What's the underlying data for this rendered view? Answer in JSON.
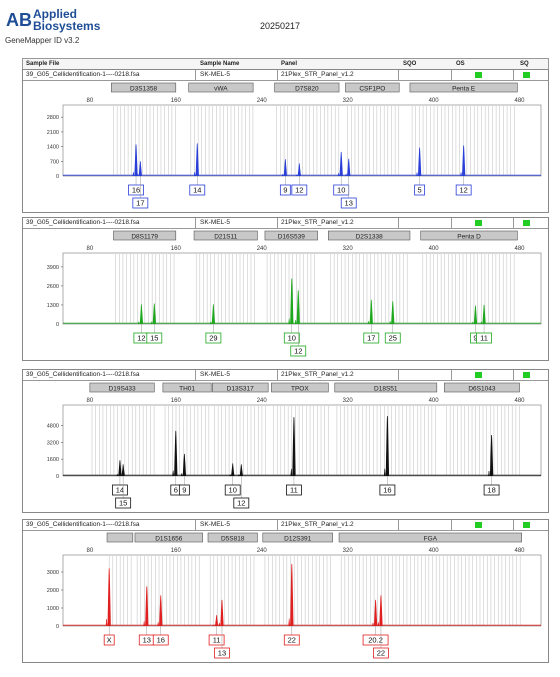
{
  "brand": {
    "line1": "Applied",
    "line2": "Biosystems",
    "logo_text": "AB"
  },
  "software": "GeneMapper ID v3.2",
  "report_date": "20250217",
  "header": {
    "sample_file": "Sample File",
    "sample_name": "Sample Name",
    "panel": "Panel",
    "sqo": "SQO",
    "os": "OS",
    "sq": "SQ"
  },
  "colors": {
    "blue": "#2a3fd8",
    "green": "#1fa81f",
    "black": "#111111",
    "red": "#e02020",
    "quality_ok": "#22cc22"
  },
  "chart_data": [
    {
      "type": "electropherogram",
      "dye": "blue",
      "sample_file": "39_G05_Cellidentification-1----0218.fsa",
      "sample_name": "SK-MEL-5",
      "panel": "21Plex_STR_Panel_v1.2",
      "x_ticks": [
        80,
        160,
        240,
        320,
        400,
        480
      ],
      "y_ticks": [
        700,
        1400,
        2100,
        2800
      ],
      "y_tick_labels": [
        "700",
        "1400",
        "2100",
        "2800"
      ],
      "ylim": [
        0,
        3000
      ],
      "markers": [
        {
          "name": "D3S1358",
          "start": 100,
          "end": 160
        },
        {
          "name": "vWA",
          "start": 172,
          "end": 232
        },
        {
          "name": "D7S820",
          "start": 252,
          "end": 312
        },
        {
          "name": "CSF1PO",
          "start": 318,
          "end": 368
        },
        {
          "name": "Penta E",
          "start": 378,
          "end": 478
        }
      ],
      "peaks": [
        {
          "x": 123,
          "h": 1500,
          "allele": "16",
          "row": 1
        },
        {
          "x": 127,
          "h": 700,
          "allele": "17",
          "row": 2
        },
        {
          "x": 180,
          "h": 1550,
          "allele": "14",
          "row": 1
        },
        {
          "x": 262,
          "h": 800,
          "allele": "9",
          "row": 1
        },
        {
          "x": 275,
          "h": 600,
          "allele": "12",
          "row": 1
        },
        {
          "x": 314,
          "h": 1150,
          "allele": "10",
          "row": 1
        },
        {
          "x": 321,
          "h": 820,
          "allele": "13",
          "row": 2
        },
        {
          "x": 387,
          "h": 1350,
          "allele": "5",
          "row": 1
        },
        {
          "x": 428,
          "h": 1450,
          "allele": "12",
          "row": 1
        }
      ]
    },
    {
      "type": "electropherogram",
      "dye": "green",
      "sample_file": "39_G05_Cellidentification-1----0218.fsa",
      "sample_name": "SK-MEL-5",
      "panel": "21Plex_STR_Panel_v1.2",
      "x_ticks": [
        80,
        160,
        240,
        320,
        400,
        480
      ],
      "y_ticks": [
        1300,
        2600,
        3900
      ],
      "y_tick_labels": [
        "1300",
        "2600",
        "3900"
      ],
      "ylim": [
        0,
        4300
      ],
      "markers": [
        {
          "name": "D8S1179",
          "start": 102,
          "end": 160
        },
        {
          "name": "D21S11",
          "start": 177,
          "end": 236
        },
        {
          "name": "D16S539",
          "start": 243,
          "end": 292
        },
        {
          "name": "D2S1338",
          "start": 302,
          "end": 378
        },
        {
          "name": "Penta D",
          "start": 388,
          "end": 478
        }
      ],
      "peaks": [
        {
          "x": 128,
          "h": 1350,
          "allele": "12",
          "row": 1
        },
        {
          "x": 140,
          "h": 1400,
          "allele": "15",
          "row": 1
        },
        {
          "x": 195,
          "h": 1350,
          "allele": "29",
          "row": 1
        },
        {
          "x": 268,
          "h": 3100,
          "allele": "10",
          "row": 1
        },
        {
          "x": 274,
          "h": 2300,
          "allele": "12",
          "row": 2
        },
        {
          "x": 342,
          "h": 1650,
          "allele": "17",
          "row": 1
        },
        {
          "x": 362,
          "h": 1550,
          "allele": "25",
          "row": 1
        },
        {
          "x": 439,
          "h": 1250,
          "allele": "9",
          "row": 1
        },
        {
          "x": 447,
          "h": 1300,
          "allele": "11",
          "row": 1
        }
      ]
    },
    {
      "type": "electropherogram",
      "dye": "black",
      "sample_file": "39_G05_Cellidentification-1----0218.fsa",
      "sample_name": "SK-MEL-5",
      "panel": "21Plex_STR_Panel_v1.2",
      "x_ticks": [
        80,
        160,
        240,
        320,
        400,
        480
      ],
      "y_ticks": [
        1600,
        3200,
        4800
      ],
      "y_tick_labels": [
        "1600",
        "3200",
        "4800"
      ],
      "ylim": [
        0,
        6000
      ],
      "markers": [
        {
          "name": "D19S433",
          "start": 80,
          "end": 140
        },
        {
          "name": "TH01",
          "start": 148,
          "end": 193
        },
        {
          "name": "D13S317",
          "start": 194,
          "end": 246
        },
        {
          "name": "TPOX",
          "start": 249,
          "end": 302
        },
        {
          "name": "D18S51",
          "start": 308,
          "end": 403
        },
        {
          "name": "D6S1043",
          "start": 410,
          "end": 480
        }
      ],
      "peaks": [
        {
          "x": 108,
          "h": 1500,
          "allele": "14",
          "row": 1
        },
        {
          "x": 111,
          "h": 1100,
          "allele": "15",
          "row": 2
        },
        {
          "x": 160,
          "h": 4300,
          "allele": "6",
          "row": 1
        },
        {
          "x": 168,
          "h": 2100,
          "allele": "9",
          "row": 1
        },
        {
          "x": 213,
          "h": 1200,
          "allele": "10",
          "row": 1
        },
        {
          "x": 221,
          "h": 1100,
          "allele": "12",
          "row": 2
        },
        {
          "x": 270,
          "h": 5600,
          "allele": "11",
          "row": 1
        },
        {
          "x": 357,
          "h": 5700,
          "allele": "16",
          "row": 1
        },
        {
          "x": 454,
          "h": 3900,
          "allele": "18",
          "row": 1
        }
      ]
    },
    {
      "type": "electropherogram",
      "dye": "red",
      "sample_file": "39_G05_Cellidentification-1----0218.fsa",
      "sample_name": "SK-MEL-5",
      "panel": "21Plex_STR_Panel_v1.2",
      "x_ticks": [
        80,
        160,
        240,
        320,
        400,
        480
      ],
      "y_ticks": [
        1000,
        2000,
        3000
      ],
      "y_tick_labels": [
        "1000",
        "2000",
        "3000"
      ],
      "ylim": [
        0,
        3500
      ],
      "markers": [
        {
          "name": "",
          "start": 96,
          "end": 120
        },
        {
          "name": "D1S1656",
          "start": 122,
          "end": 185
        },
        {
          "name": "D5S818",
          "start": 190,
          "end": 236
        },
        {
          "name": "D12S391",
          "start": 241,
          "end": 306
        },
        {
          "name": "FGA",
          "start": 312,
          "end": 482
        }
      ],
      "peaks": [
        {
          "x": 98,
          "h": 3200,
          "allele": "X",
          "row": 1
        },
        {
          "x": 133,
          "h": 2200,
          "allele": "13",
          "row": 1
        },
        {
          "x": 146,
          "h": 1700,
          "allele": "16",
          "row": 1
        },
        {
          "x": 198,
          "h": 600,
          "allele": "11",
          "row": 1
        },
        {
          "x": 203,
          "h": 1450,
          "allele": "13",
          "row": 2
        },
        {
          "x": 268,
          "h": 3450,
          "allele": "22",
          "row": 1
        },
        {
          "x": 346,
          "h": 1450,
          "allele": "20.2",
          "row": 1
        },
        {
          "x": 351,
          "h": 1700,
          "allele": "22",
          "row": 2
        }
      ]
    }
  ]
}
